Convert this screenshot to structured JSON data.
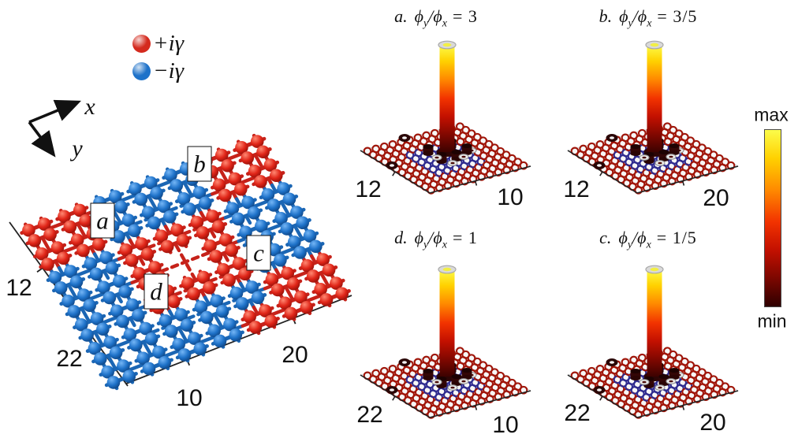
{
  "legend": {
    "items": [
      {
        "label": "+iγ",
        "color": "#d42a1e",
        "meaning": "gain site"
      },
      {
        "label": "−iγ",
        "color": "#1e72c9",
        "meaning": "loss site"
      }
    ]
  },
  "axes_key": {
    "x": "x",
    "y": "y"
  },
  "lattice_panel": {
    "y_ticks": [
      "12",
      "22"
    ],
    "x_ticks": [
      "10",
      "20"
    ],
    "site_labels": [
      {
        "text": "a"
      },
      {
        "text": "b"
      },
      {
        "text": "c"
      },
      {
        "text": "d"
      }
    ]
  },
  "math": {
    "phi": "ϕ",
    "sub_y": "y",
    "sub_x": "x",
    "slash": "/",
    "equals": "="
  },
  "panels": [
    {
      "id": "a",
      "label": "a.",
      "value": "= 3",
      "left_tick": "12",
      "right_tick": "10"
    },
    {
      "id": "b",
      "label": "b.",
      "value": "= 3/5",
      "left_tick": "12",
      "right_tick": "20"
    },
    {
      "id": "d",
      "label": "d.",
      "value": "= 1",
      "left_tick": "22",
      "right_tick": "10"
    },
    {
      "id": "c",
      "label": "c.",
      "value": "= 1/5",
      "left_tick": "22",
      "right_tick": "20"
    }
  ],
  "colorbar": {
    "max": "max",
    "min": "min",
    "gradient": [
      "#fcfc4a",
      "#ffd100",
      "#ff8a00",
      "#f23300",
      "#c31000",
      "#7c0700",
      "#2e0000"
    ]
  },
  "chart_data": [
    {
      "type": "3d-bar",
      "panel_label": "a",
      "title": "a. ϕy/ϕx = 3",
      "x_tick_labels": [
        "10"
      ],
      "y_tick_labels": [
        "12"
      ],
      "colormap": "hot",
      "z_range": [
        "min",
        "max"
      ],
      "data_summary": "single dominant localized mode: one tall column at plane center reaching max; a few small near-min pillars and rings clustered at its base"
    },
    {
      "type": "3d-bar",
      "panel_label": "b",
      "title": "b. ϕy/ϕx = 3/5",
      "x_tick_labels": [
        "20"
      ],
      "y_tick_labels": [
        "12"
      ],
      "colormap": "hot",
      "z_range": [
        "min",
        "max"
      ],
      "data_summary": "single dominant localized mode at plane center with small satellite amplitudes at neighboring sites"
    },
    {
      "type": "3d-bar",
      "panel_label": "d",
      "title": "d. ϕy/ϕx = 1",
      "x_tick_labels": [
        "10"
      ],
      "y_tick_labels": [
        "22"
      ],
      "colormap": "hot",
      "z_range": [
        "min",
        "max"
      ],
      "data_summary": "single dominant localized mode at plane center with small satellite amplitudes at neighboring sites"
    },
    {
      "type": "3d-bar",
      "panel_label": "c",
      "title": "c. ϕy/ϕx = 1/5",
      "x_tick_labels": [
        "20"
      ],
      "y_tick_labels": [
        "22"
      ],
      "colormap": "hot",
      "z_range": [
        "min",
        "max"
      ],
      "data_summary": "single dominant localized mode at plane center with small satellite amplitudes at neighboring sites"
    },
    {
      "type": "diagram",
      "panel_label": "lattice",
      "description": "oblique 3D view of a square lattice of four-sphere plaquettes with gain (+iγ, red) and loss (−iγ, blue) regions; dashed bonds couple plaquettes; center plaquette missing",
      "y_tick_labels": [
        "12",
        "22"
      ],
      "x_tick_labels": [
        "10",
        "20"
      ],
      "plaquette_pattern_rows": [
        "RRBBBRR",
        "RRBBBRR",
        "BBRRRBB",
        "BBR.RBB",
        "BBRRRBB",
        "BBBBBRR",
        "BBBBRRR"
      ],
      "marked_plaquettes": [
        "a",
        "b",
        "c",
        "d"
      ]
    }
  ]
}
